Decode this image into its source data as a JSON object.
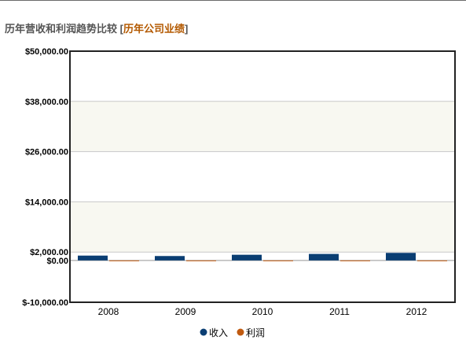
{
  "header": {
    "title": "历年营收和利润趋势比较",
    "bracket_open": "[",
    "link_label": "历年公司业绩",
    "bracket_close": "]"
  },
  "colors": {
    "income": "#0a3e73",
    "profit": "#c05a10",
    "link": "#b35900",
    "band": "#f8f8f1"
  },
  "chart_data": {
    "type": "bar",
    "categories": [
      "2008",
      "2009",
      "2010",
      "2011",
      "2012"
    ],
    "series": [
      {
        "name": "收入",
        "values": [
          1150,
          1050,
          1350,
          1550,
          1800
        ]
      },
      {
        "name": "利润",
        "values": [
          -50,
          0,
          0,
          -100,
          -30
        ]
      }
    ],
    "ylim": [
      -10000,
      50000
    ],
    "y_ticks": [
      -10000,
      0,
      2000,
      14000,
      26000,
      38000,
      50000
    ],
    "y_tick_labels": [
      "$-10,000.00",
      "$0.00",
      "$2,000.00",
      "$14,000.00",
      "$26,000.00",
      "$38,000.00",
      "$50,000.00"
    ],
    "grid": true,
    "legend_position": "bottom-center"
  }
}
